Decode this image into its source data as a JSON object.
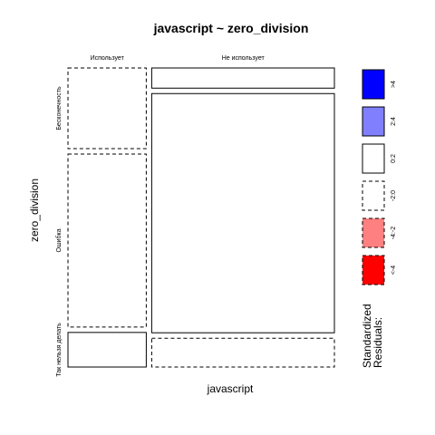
{
  "chart_data": {
    "type": "mosaic",
    "title": "javascript ~ zero_division",
    "xlabel": "javascript",
    "ylabel": "zero_division",
    "x_categories": [
      "Использует",
      "Не использует"
    ],
    "y_categories": [
      "Бесконечность",
      "Ошибка",
      "Так нельзя делать"
    ],
    "x_proportions": [
      0.3,
      0.7
    ],
    "conditional_proportions": [
      [
        0.28,
        0.6,
        0.12
      ],
      [
        0.07,
        0.83,
        0.1
      ]
    ],
    "cells": [
      {
        "x": "Использует",
        "y": "Бесконечность",
        "residual_class": "-2:0"
      },
      {
        "x": "Использует",
        "y": "Ошибка",
        "residual_class": "-2:0"
      },
      {
        "x": "Использует",
        "y": "Так нельзя делать",
        "residual_class": "0:2"
      },
      {
        "x": "Не использует",
        "y": "Бесконечность",
        "residual_class": "0:2"
      },
      {
        "x": "Не использует",
        "y": "Ошибка",
        "residual_class": "0:2"
      },
      {
        "x": "Не использует",
        "y": "Так нельзя делать",
        "residual_class": "-2:0"
      }
    ],
    "legend": {
      "title_lines": [
        "Standardized",
        "Residuals:"
      ],
      "placement": "right",
      "items": [
        {
          "label": ">4",
          "fill": "#0000FF",
          "dashed": false
        },
        {
          "label": "2:4",
          "fill": "#8080FF",
          "dashed": false
        },
        {
          "label": "0:2",
          "fill": "#FFFFFF",
          "dashed": false
        },
        {
          "label": "-2:0",
          "fill": "#FFFFFF",
          "dashed": true
        },
        {
          "label": "-4:-2",
          "fill": "#FF8080",
          "dashed": true
        },
        {
          "label": "<-4",
          "fill": "#FF0000",
          "dashed": true
        }
      ]
    }
  }
}
